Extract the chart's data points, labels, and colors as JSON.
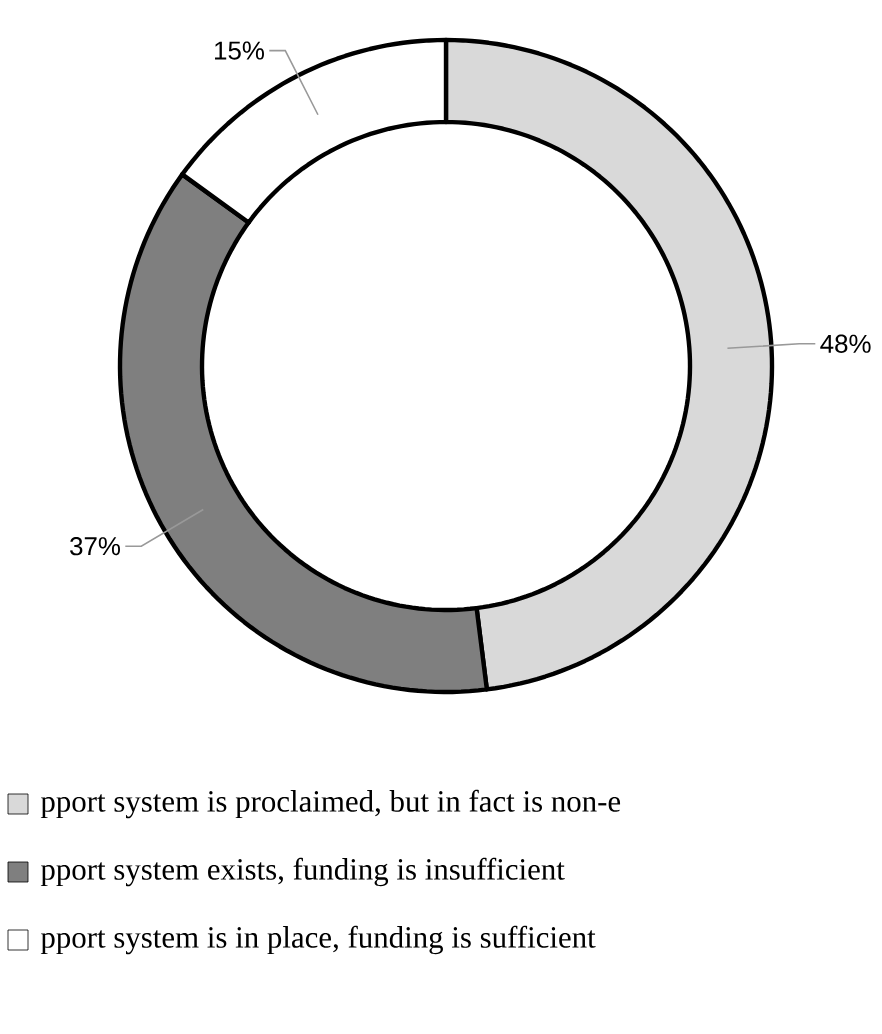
{
  "chart_data": {
    "type": "donut",
    "categories": [
      "pport system is proclaimed, but in fact is non-e",
      "pport system exists, funding is insufficient",
      "pport system is in place, funding is sufficient"
    ],
    "values": [
      48,
      37,
      15
    ],
    "value_labels": [
      "48%",
      "37%",
      "15%"
    ],
    "colors": [
      "#d9d9d9",
      "#7f7f7f",
      "#ffffff"
    ],
    "legend": "bottom"
  }
}
